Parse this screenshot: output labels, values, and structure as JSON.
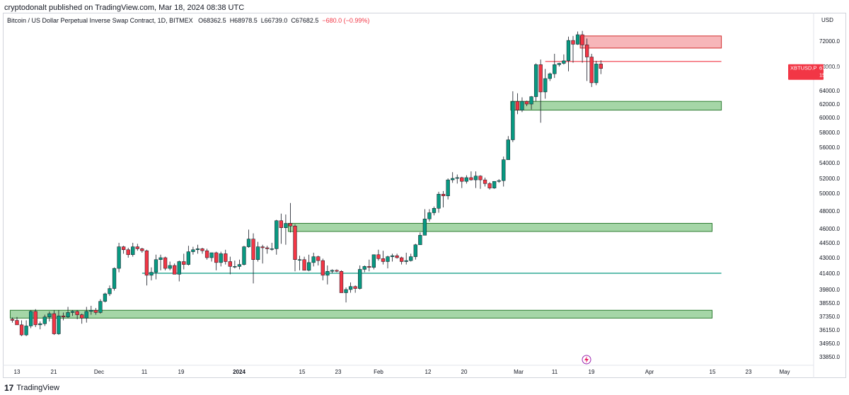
{
  "publisher_line": "cryptodonalt published on TradingView.com, Mar 18, 2024 08:38 UTC",
  "symbol": {
    "title": "Bitcoin / US Dollar Perpetual Inverse Swap Contract, 1D, BITMEX",
    "open": "O68362.5",
    "high": "H68978.5",
    "low": "L66739.0",
    "close": "C67682.5",
    "change": "−680.0 (−0.99%)"
  },
  "price_tag": {
    "ticker": "XBTUSD.P",
    "price": "67682.5",
    "timer": "15:21:22",
    "color": "#f23645"
  },
  "footer": {
    "brand": "TradingView",
    "logo_text": "17"
  },
  "colors": {
    "up": "#089981",
    "down": "#f23645",
    "zone_green": "#a5d6a7",
    "zone_green_border": "#2e7d32",
    "zone_red": "#f7b6b9",
    "zone_red_border": "#d32f2f",
    "hline": "#089981",
    "resistance_line": "#f23645"
  },
  "chart_data": {
    "type": "candlestick",
    "currency": "USD",
    "y_ticks": [
      "72000.0",
      "68000.0",
      "64000.0",
      "62000.0",
      "60000.0",
      "58000.0",
      "56000.0",
      "54000.0",
      "52000.0",
      "50000.0",
      "48000.0",
      "46000.0",
      "44500.0",
      "43000.0",
      "41400.0",
      "39800.0",
      "38550.0",
      "37350.0",
      "36150.0",
      "34950.0",
      "33850.0"
    ],
    "x_ticks": [
      "13",
      "21",
      "Dec",
      "11",
      "19",
      "2024",
      "15",
      "23",
      "Feb",
      "12",
      "20",
      "Mar",
      "11",
      "19",
      "Apr",
      "15",
      "23",
      "May"
    ],
    "zones": [
      {
        "kind": "supply",
        "low": 70900,
        "high": 72800,
        "from": "2024-03-14",
        "to": "2024-04-13"
      },
      {
        "kind": "demand",
        "low": 61100,
        "high": 62400,
        "from": "2024-02-28",
        "to": "2024-04-13"
      },
      {
        "kind": "demand",
        "low": 45700,
        "high": 46600,
        "from": "2024-01-11",
        "to": "2024-04-11"
      },
      {
        "kind": "demand",
        "low": 37200,
        "high": 37900,
        "from": "2023-11-12",
        "to": "2024-04-11"
      }
    ],
    "lines": [
      {
        "kind": "support",
        "price": 41400,
        "from": "2023-12-10",
        "to": "2024-04-13"
      },
      {
        "kind": "resistance",
        "price": 68800,
        "from": "2024-03-06",
        "to": "2024-04-13"
      }
    ],
    "candles": [
      [
        "2023-11-12",
        37100,
        37250,
        36800,
        37000
      ],
      [
        "2023-11-13",
        37000,
        37300,
        36600,
        36600
      ],
      [
        "2023-11-14",
        36600,
        37000,
        35600,
        35700
      ],
      [
        "2023-11-15",
        35700,
        37000,
        35600,
        36500
      ],
      [
        "2023-11-16",
        36500,
        37900,
        36300,
        37800
      ],
      [
        "2023-11-17",
        37800,
        38000,
        36400,
        36600
      ],
      [
        "2023-11-18",
        36600,
        36900,
        36200,
        36700
      ],
      [
        "2023-11-19",
        36700,
        37500,
        36500,
        37300
      ],
      [
        "2023-11-20",
        37300,
        37800,
        36900,
        37600
      ],
      [
        "2023-11-21",
        37600,
        37900,
        35700,
        35800
      ],
      [
        "2023-11-22",
        35800,
        37900,
        35700,
        37400
      ],
      [
        "2023-11-23",
        37400,
        37700,
        37000,
        37300
      ],
      [
        "2023-11-24",
        37300,
        38200,
        37200,
        37700
      ],
      [
        "2023-11-25",
        37700,
        37900,
        37400,
        37800
      ],
      [
        "2023-11-26",
        37800,
        37900,
        37100,
        37500
      ],
      [
        "2023-11-27",
        37500,
        37600,
        36700,
        37200
      ],
      [
        "2023-11-28",
        37200,
        38200,
        36800,
        37800
      ],
      [
        "2023-11-29",
        37800,
        38300,
        37500,
        37900
      ],
      [
        "2023-11-30",
        37900,
        38100,
        37500,
        37700
      ],
      [
        "2023-12-01",
        37700,
        38900,
        37600,
        38700
      ],
      [
        "2023-12-02",
        38700,
        39500,
        38600,
        39400
      ],
      [
        "2023-12-03",
        39400,
        40200,
        39200,
        39900
      ],
      [
        "2023-12-04",
        39900,
        42000,
        39700,
        41900
      ],
      [
        "2023-12-05",
        41900,
        44500,
        41500,
        44100
      ],
      [
        "2023-12-06",
        44100,
        44200,
        43400,
        43800
      ],
      [
        "2023-12-07",
        43800,
        44000,
        43000,
        43300
      ],
      [
        "2023-12-08",
        43300,
        44500,
        43100,
        44100
      ],
      [
        "2023-12-09",
        44100,
        44400,
        43700,
        43900
      ],
      [
        "2023-12-10",
        43900,
        44000,
        43500,
        43700
      ],
      [
        "2023-12-11",
        43700,
        43800,
        40200,
        41200
      ],
      [
        "2023-12-12",
        41200,
        42000,
        40700,
        41500
      ],
      [
        "2023-12-13",
        41500,
        43300,
        40800,
        42800
      ],
      [
        "2023-12-14",
        42800,
        43300,
        41700,
        43000
      ],
      [
        "2023-12-15",
        43000,
        43100,
        41700,
        41900
      ],
      [
        "2023-12-16",
        41900,
        42600,
        41700,
        42200
      ],
      [
        "2023-12-17",
        42200,
        42400,
        41300,
        41300
      ],
      [
        "2023-12-18",
        41300,
        42700,
        40600,
        42600
      ],
      [
        "2023-12-19",
        42600,
        43400,
        41800,
        42300
      ],
      [
        "2023-12-20",
        42300,
        44200,
        42200,
        43600
      ],
      [
        "2023-12-21",
        43600,
        44100,
        43300,
        43800
      ],
      [
        "2023-12-22",
        43800,
        44300,
        43400,
        43900
      ],
      [
        "2023-12-23",
        43900,
        44000,
        43400,
        43700
      ],
      [
        "2023-12-24",
        43700,
        43900,
        42800,
        43000
      ],
      [
        "2023-12-25",
        43000,
        43500,
        42600,
        43500
      ],
      [
        "2023-12-26",
        43500,
        43600,
        41700,
        42500
      ],
      [
        "2023-12-27",
        42500,
        43600,
        42100,
        43400
      ],
      [
        "2023-12-28",
        43400,
        43800,
        42300,
        42600
      ],
      [
        "2023-12-29",
        42600,
        43100,
        41300,
        42100
      ],
      [
        "2023-12-30",
        42100,
        42700,
        41900,
        42100
      ],
      [
        "2023-12-31",
        42100,
        42800,
        41800,
        42300
      ],
      [
        "2024-01-01",
        42300,
        44200,
        42200,
        44100
      ],
      [
        "2024-01-02",
        44100,
        45900,
        44000,
        44900
      ],
      [
        "2024-01-03",
        44900,
        45500,
        40400,
        42800
      ],
      [
        "2024-01-04",
        42800,
        44600,
        42600,
        44100
      ],
      [
        "2024-01-05",
        44100,
        44300,
        42400,
        44000
      ],
      [
        "2024-01-06",
        44000,
        44200,
        43400,
        43900
      ],
      [
        "2024-01-07",
        43900,
        44500,
        43700,
        43900
      ],
      [
        "2024-01-08",
        43900,
        47000,
        43300,
        46900
      ],
      [
        "2024-01-09",
        46900,
        47700,
        44400,
        46100
      ],
      [
        "2024-01-10",
        46100,
        47600,
        44300,
        46600
      ],
      [
        "2024-01-11",
        46600,
        48900,
        45600,
        46300
      ],
      [
        "2024-01-12",
        46300,
        46500,
        41600,
        42800
      ],
      [
        "2024-01-13",
        42800,
        43200,
        41700,
        42800
      ],
      [
        "2024-01-14",
        42800,
        43100,
        41700,
        41700
      ],
      [
        "2024-01-15",
        41700,
        43300,
        41600,
        42500
      ],
      [
        "2024-01-16",
        42500,
        43500,
        42100,
        43100
      ],
      [
        "2024-01-17",
        43100,
        43200,
        42200,
        42700
      ],
      [
        "2024-01-18",
        42700,
        42900,
        40700,
        41200
      ],
      [
        "2024-01-19",
        41200,
        42200,
        40300,
        41600
      ],
      [
        "2024-01-20",
        41600,
        41800,
        41400,
        41700
      ],
      [
        "2024-01-21",
        41700,
        41800,
        41500,
        41600
      ],
      [
        "2024-01-22",
        41600,
        41700,
        39500,
        39500
      ],
      [
        "2024-01-23",
        39500,
        40000,
        38600,
        39800
      ],
      [
        "2024-01-24",
        39800,
        40500,
        39500,
        40100
      ],
      [
        "2024-01-25",
        40100,
        40200,
        39500,
        39900
      ],
      [
        "2024-01-26",
        39900,
        42200,
        39800,
        41800
      ],
      [
        "2024-01-27",
        41800,
        42200,
        41500,
        42100
      ],
      [
        "2024-01-28",
        42100,
        42800,
        41600,
        42000
      ],
      [
        "2024-01-29",
        42000,
        43300,
        41800,
        43300
      ],
      [
        "2024-01-30",
        43300,
        43800,
        42700,
        42900
      ],
      [
        "2024-01-31",
        42900,
        43700,
        42300,
        42600
      ],
      [
        "2024-02-01",
        42600,
        43200,
        41900,
        43100
      ],
      [
        "2024-02-02",
        43100,
        43400,
        42600,
        43200
      ],
      [
        "2024-02-03",
        43200,
        43400,
        42900,
        43000
      ],
      [
        "2024-02-04",
        43000,
        43100,
        42300,
        42600
      ],
      [
        "2024-02-05",
        42600,
        43500,
        42300,
        42700
      ],
      [
        "2024-02-06",
        42700,
        43400,
        42600,
        43100
      ],
      [
        "2024-02-07",
        43100,
        44400,
        42800,
        44300
      ],
      [
        "2024-02-08",
        44300,
        45600,
        44300,
        45300
      ],
      [
        "2024-02-09",
        45300,
        48200,
        45300,
        47100
      ],
      [
        "2024-02-10",
        47100,
        48200,
        46800,
        47800
      ],
      [
        "2024-02-11",
        47800,
        48500,
        47500,
        48300
      ],
      [
        "2024-02-12",
        48300,
        50200,
        47800,
        49900
      ],
      [
        "2024-02-13",
        49900,
        50300,
        48400,
        49700
      ],
      [
        "2024-02-14",
        49700,
        52000,
        49300,
        51800
      ],
      [
        "2024-02-15",
        51800,
        52800,
        51400,
        52000
      ],
      [
        "2024-02-16",
        52000,
        52500,
        51300,
        52100
      ],
      [
        "2024-02-17",
        52100,
        52200,
        50700,
        51600
      ],
      [
        "2024-02-18",
        51600,
        52400,
        51300,
        52100
      ],
      [
        "2024-02-19",
        52100,
        52900,
        51700,
        51800
      ],
      [
        "2024-02-20",
        51800,
        52900,
        50700,
        52300
      ],
      [
        "2024-02-21",
        52300,
        52400,
        50600,
        51800
      ],
      [
        "2024-02-22",
        51800,
        52100,
        50900,
        51300
      ],
      [
        "2024-02-23",
        51300,
        51500,
        50500,
        50700
      ],
      [
        "2024-02-24",
        50700,
        51600,
        50600,
        51600
      ],
      [
        "2024-02-25",
        51600,
        51900,
        51400,
        51700
      ],
      [
        "2024-02-26",
        51700,
        54800,
        50900,
        54400
      ],
      [
        "2024-02-27",
        54400,
        57500,
        54400,
        57000
      ],
      [
        "2024-02-28",
        57000,
        63900,
        56700,
        62400
      ],
      [
        "2024-02-29",
        62400,
        63600,
        60500,
        61100
      ],
      [
        "2024-03-01",
        61100,
        63000,
        60800,
        62400
      ],
      [
        "2024-03-02",
        62400,
        62500,
        61700,
        62000
      ],
      [
        "2024-03-03",
        62000,
        63200,
        61200,
        63100
      ],
      [
        "2024-03-04",
        63100,
        68500,
        62400,
        68300
      ],
      [
        "2024-03-05",
        68300,
        69100,
        59300,
        63800
      ],
      [
        "2024-03-06",
        63800,
        67600,
        62800,
        66000
      ],
      [
        "2024-03-07",
        66000,
        67000,
        65600,
        66800
      ],
      [
        "2024-03-08",
        66800,
        70000,
        66100,
        68300
      ],
      [
        "2024-03-09",
        68300,
        68600,
        68000,
        68500
      ],
      [
        "2024-03-10",
        68500,
        69900,
        68300,
        68900
      ],
      [
        "2024-03-11",
        68900,
        72700,
        67200,
        72100
      ],
      [
        "2024-03-12",
        72100,
        72800,
        68600,
        71500
      ],
      [
        "2024-03-13",
        71500,
        73500,
        71400,
        73000
      ],
      [
        "2024-03-14",
        73000,
        73600,
        68600,
        71400
      ],
      [
        "2024-03-15",
        71400,
        72400,
        65600,
        69500
      ],
      [
        "2024-03-16",
        69500,
        70000,
        64600,
        65300
      ],
      [
        "2024-03-17",
        65300,
        68900,
        64900,
        68400
      ],
      [
        "2024-03-18",
        68400,
        68980,
        66740,
        67680
      ]
    ]
  }
}
